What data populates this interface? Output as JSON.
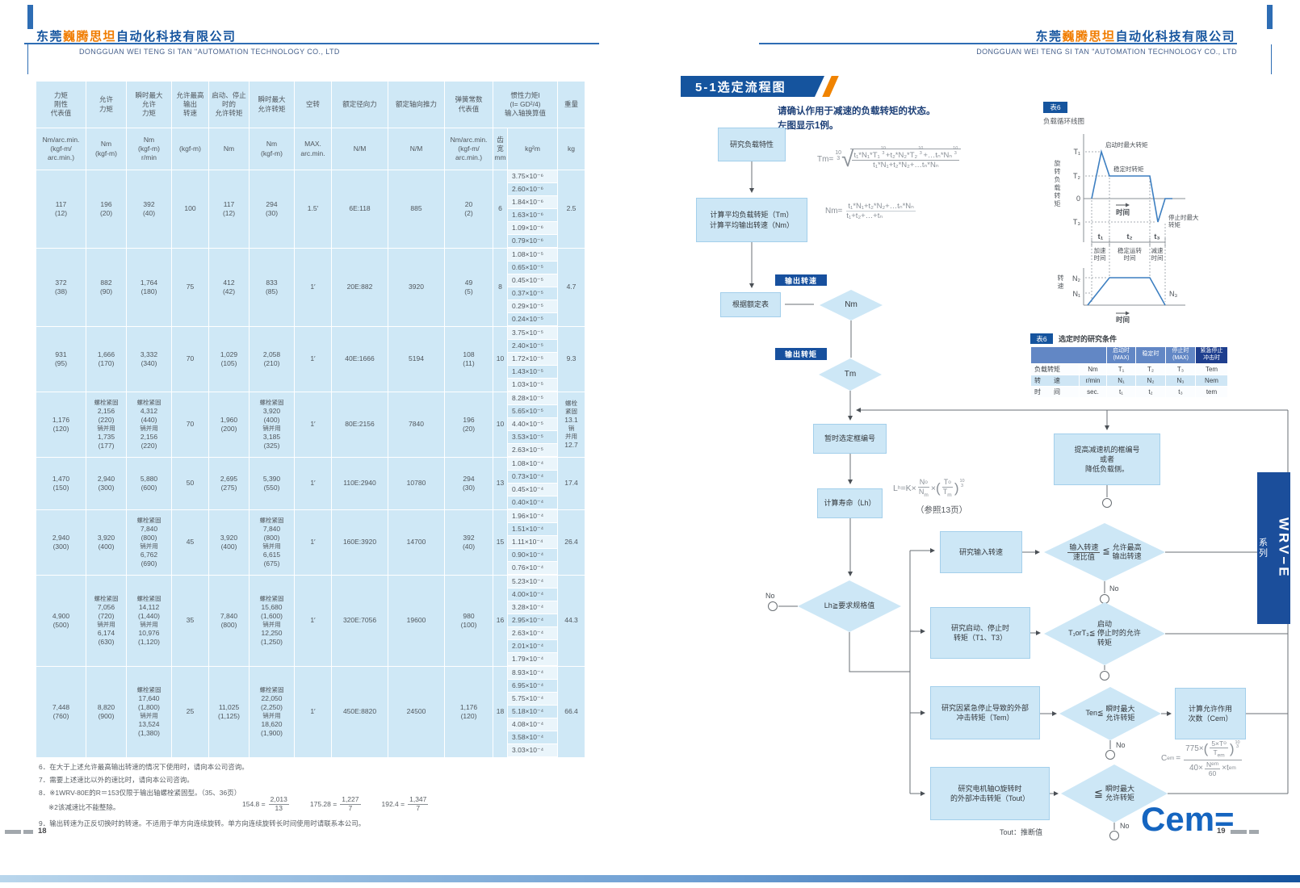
{
  "header_left": {
    "cn_pre": "东莞",
    "cn_brand": "巍腾思坦",
    "cn_post": "自动化科技有限公司",
    "en": "DONGGUAN WEI TENG SI TAN \"AUTOMATION TECHNOLOGY CO., LTD"
  },
  "header_right": {
    "cn_pre": "东莞",
    "cn_brand": "巍腾思坦",
    "cn_post": "自动化科技有限公司",
    "en": "DONGGUAN WEI TENG SI TAN \"AUTOMATION TECHNOLOGY CO., LTD"
  },
  "page_left": {
    "page_num": "18",
    "table": {
      "cols": [
        {
          "t": [
            "力矩",
            "刚性",
            "代表值"
          ],
          "u": [
            "Nm/arc.min.",
            "(kgf-m/",
            "arc.min.)"
          ]
        },
        {
          "t": [
            "允许",
            "力矩"
          ],
          "u": [
            "Nm",
            "(kgf-m)"
          ]
        },
        {
          "t": [
            "瞬时最大",
            "允许",
            "力矩"
          ],
          "u": [
            "Nm",
            "(kgf-m)",
            "r/min"
          ]
        },
        {
          "t": [
            "允许最高",
            "输出",
            "转速"
          ],
          "u": [
            "(kgf-m)"
          ]
        },
        {
          "t": [
            "启动、停止",
            "时的",
            "允许转矩"
          ],
          "u": [
            "Nm"
          ]
        },
        {
          "t": [
            "瞬时最大",
            "允许转矩"
          ],
          "u": [
            "Nm",
            "(kgf-m)"
          ]
        },
        {
          "t": [
            "空转"
          ],
          "u": [
            "MAX.",
            "arc.min."
          ]
        },
        {
          "t": [
            "额定径向力"
          ],
          "u": [
            "N/M"
          ]
        },
        {
          "t": [
            "额定轴向推力"
          ],
          "u": [
            "N/M"
          ]
        },
        {
          "t": [
            "弹簧常数",
            "代表值"
          ],
          "u": [
            "Nm/arc.min.",
            "(kgf-m/",
            "arc.min.)"
          ]
        }
      ],
      "inertia_head": {
        "t": [
          "惯性力矩I",
          "(I= GD²/4)",
          "输入轴换算值"
        ],
        "gear": "齿宽",
        "gear_u": "mm",
        "unit": "kg²m"
      },
      "weight_head": {
        "t": [
          "重量"
        ],
        "u": [
          "kg"
        ]
      },
      "rows": [
        {
          "c": [
            [
              "117",
              "(12)"
            ],
            [
              "196",
              "(20)"
            ],
            [
              "392",
              "(40)"
            ],
            [
              "100"
            ],
            [
              "117",
              "(12)"
            ],
            [
              "294",
              "(30)"
            ],
            [
              "1.5′"
            ],
            [
              "6E:118"
            ],
            [
              "885"
            ],
            [
              "20",
              "(2)"
            ]
          ],
          "w": "6",
          "inertia": [
            "3.75×10⁻⁶",
            "2.60×10⁻⁶",
            "1.84×10⁻⁶",
            "1.63×10⁻⁶",
            "1.09×10⁻⁶",
            "0.79×10⁻⁶"
          ],
          "wt": [
            "2.5"
          ]
        },
        {
          "c": [
            [
              "372",
              "(38)"
            ],
            [
              "882",
              "(90)"
            ],
            [
              "1,764",
              "(180)"
            ],
            [
              "75"
            ],
            [
              "412",
              "(42)"
            ],
            [
              "833",
              "(85)"
            ],
            [
              "1′"
            ],
            [
              "20E:882"
            ],
            [
              "3920"
            ],
            [
              "49",
              "(5)"
            ]
          ],
          "w": "8",
          "inertia": [
            "1.08×10⁻⁵",
            "0.65×10⁻⁵",
            "0.45×10⁻⁵",
            "0.37×10⁻⁵",
            "0.29×10⁻⁵",
            "0.24×10⁻⁵"
          ],
          "wt": [
            "4.7"
          ]
        },
        {
          "c": [
            [
              "931",
              "(95)"
            ],
            [
              "1,666",
              "(170)"
            ],
            [
              "3,332",
              "(340)"
            ],
            [
              "70"
            ],
            [
              "1,029",
              "(105)"
            ],
            [
              "2,058",
              "(210)"
            ],
            [
              "1′"
            ],
            [
              "40E:1666"
            ],
            [
              "5194"
            ],
            [
              "108",
              "(11)"
            ]
          ],
          "w": "10",
          "inertia": [
            "3.75×10⁻⁵",
            "2.40×10⁻⁵",
            "1.72×10⁻⁵",
            "1.43×10⁻⁵",
            "1.03×10⁻⁵"
          ],
          "wt": [
            "9.3"
          ]
        },
        {
          "c": [
            [
              "1,176",
              "(120)"
            ],
            [
              "螺栓紧固",
              "2,156",
              "(220)",
              "销并用",
              "1,735",
              "(177)"
            ],
            [
              "螺栓紧固",
              "4,312",
              "(440)",
              "销并用",
              "2,156",
              "(220)"
            ],
            [
              "70"
            ],
            [
              "1,960",
              "(200)"
            ],
            [
              "螺栓紧固",
              "3,920",
              "(400)",
              "销并用",
              "3,185",
              "(325)"
            ],
            [
              "1′"
            ],
            [
              "80E:2156"
            ],
            [
              "7840"
            ],
            [
              "196",
              "(20)"
            ]
          ],
          "w": "10",
          "inertia": [
            "8.28×10⁻⁵",
            "5.65×10⁻⁵",
            "4.40×10⁻⁵",
            "3.53×10⁻⁵",
            "2.63×10⁻⁵"
          ],
          "wt": [
            "螺栓",
            "紧固",
            "13.1",
            "销",
            "并用",
            "12.7"
          ]
        },
        {
          "c": [
            [
              "1,470",
              "(150)"
            ],
            [
              "2,940",
              "(300)"
            ],
            [
              "5,880",
              "(600)"
            ],
            [
              "50"
            ],
            [
              "2,695",
              "(275)"
            ],
            [
              "5,390",
              "(550)"
            ],
            [
              "1′"
            ],
            [
              "110E:2940"
            ],
            [
              "10780"
            ],
            [
              "294",
              "(30)"
            ]
          ],
          "w": "13",
          "inertia": [
            "1.08×10⁻⁴",
            "0.73×10⁻⁴",
            "0.45×10⁻⁴",
            "0.40×10⁻⁴"
          ],
          "wt": [
            "17.4"
          ]
        },
        {
          "c": [
            [
              "2,940",
              "(300)"
            ],
            [
              "3,920",
              "(400)"
            ],
            [
              "螺栓紧固",
              "7,840",
              "(800)",
              "销并用",
              "6,762",
              "(690)"
            ],
            [
              "45"
            ],
            [
              "3,920",
              "(400)"
            ],
            [
              "螺栓紧固",
              "7,840",
              "(800)",
              "销并用",
              "6,615",
              "(675)"
            ],
            [
              "1′"
            ],
            [
              "160E:3920"
            ],
            [
              "14700"
            ],
            [
              "392",
              "(40)"
            ]
          ],
          "w": "15",
          "inertia": [
            "1.96×10⁻⁴",
            "1.51×10⁻⁴",
            "1.11×10⁻⁴",
            "0.90×10⁻⁴",
            "0.76×10⁻⁴"
          ],
          "wt": [
            "26.4"
          ]
        },
        {
          "c": [
            [
              "4,900",
              "(500)"
            ],
            [
              "螺栓紧固",
              "7,056",
              "(720)",
              "销并用",
              "6,174",
              "(630)"
            ],
            [
              "螺栓紧固",
              "14,112",
              "(1,440)",
              "销并用",
              "10,976",
              "(1,120)"
            ],
            [
              "35"
            ],
            [
              "7,840",
              "(800)"
            ],
            [
              "螺栓紧固",
              "15,680",
              "(1,600)",
              "销并用",
              "12,250",
              "(1,250)"
            ],
            [
              "1′"
            ],
            [
              "320E:7056"
            ],
            [
              "19600"
            ],
            [
              "980",
              "(100)"
            ]
          ],
          "w": "16",
          "inertia": [
            "5.23×10⁻⁴",
            "4.00×10⁻⁴",
            "3.28×10⁻⁴",
            "2.95×10⁻⁴",
            "2.63×10⁻⁴",
            "2.01×10⁻⁴",
            "1.79×10⁻⁴"
          ],
          "wt": [
            "44.3"
          ]
        },
        {
          "c": [
            [
              "7,448",
              "(760)"
            ],
            [
              "8,820",
              "(900)"
            ],
            [
              "螺栓紧固",
              "17,640",
              "(1,800)",
              "销并用",
              "13,524",
              "(1,380)"
            ],
            [
              "25"
            ],
            [
              "11,025",
              "(1,125)"
            ],
            [
              "螺栓紧固",
              "22,050",
              "(2,250)",
              "销并用",
              "18,620",
              "(1,900)"
            ],
            [
              "1′"
            ],
            [
              "450E:8820"
            ],
            [
              "24500"
            ],
            [
              "1,176",
              "(120)"
            ]
          ],
          "w": "18",
          "inertia": [
            "8.93×10⁻⁴",
            "6.95×10⁻⁴",
            "5.75×10⁻⁴",
            "5.18×10⁻⁴",
            "4.08×10⁻⁴",
            "3.58×10⁻⁴",
            "3.03×10⁻⁴"
          ],
          "wt": [
            "66.4"
          ]
        }
      ]
    },
    "notes": [
      "6．在大于上述允许最高输出转速的情况下使用时，请向本公司咨询。",
      "7．需要上述速比以外的速比时，请向本公司咨询。",
      "8．※1WRV-80E的R＝153仅限于输出轴螺栓紧固型。（35、36页）",
      "※2该减速比不能整除。",
      "9．输出转速为正反切换时的转速。不适用于单方向连续旋转。单方向连续旋转长时间使用时请联系本公司。"
    ],
    "fractions": [
      {
        "eq": "154.8 =",
        "n": "2,013",
        "d": "13"
      },
      {
        "eq": "175.28 =",
        "n": "1,227",
        "d": "7"
      },
      {
        "eq": "192.4 =",
        "n": "1,347",
        "d": "7"
      }
    ]
  },
  "page_right": {
    "page_num": "19",
    "banner": "5-1选定流程图",
    "intro1": "请确认作用于减速的负载转矩的状态。",
    "intro2": "左图显示1例。",
    "tab_series": "WRV−E",
    "tab_series2": "系列",
    "flow": {
      "b1": "研究负载特性",
      "b2l1": "计算平均负载转矩（Tm）",
      "b2l2": "计算平均输出转速（Nm）",
      "tag_speed": "输出转速",
      "b3": "根据额定表",
      "d1": "Nm",
      "tag_torque": "输出转矩",
      "d2": "Tm",
      "b4": "暂时选定框编号",
      "b5": "计算寿命（Lh）",
      "d3": "Lh≧要求规格值",
      "no": "No",
      "b6": "研究输入转速",
      "d4n": "输入转速",
      "d4d": "速比值",
      "d4op": "≦",
      "d4r1": "允许最高",
      "d4r2": "输出转速",
      "b7l1": "研究启动、停止时",
      "b7l2": "转矩（T1、T3）",
      "d5l1": "启动",
      "d5l2": "T₁orT₃≦ 停止时的允许",
      "d5l3": "转矩",
      "b8l1": "研究因紧急停止导致的外部",
      "b8l2": "冲击转矩（Tem）",
      "d6l": "Ten≦",
      "d6r1": "瞬时最大",
      "d6r2": "允许转矩",
      "b9l1": "计算允许作用",
      "b9l2": "次数（Cem）",
      "b10l1": "研究电机轴O旋转时",
      "b10l2": "的外部冲击转矩（Tout）",
      "d7op": "≦",
      "d7r1": "瞬时最大",
      "d7r2": "允许转矩",
      "b11l1": "提高减速机的框编号",
      "b11l2": "或者",
      "b11l3": "降低负载侧。",
      "tout_note": "Tout：推断值",
      "cem_big": "Cem="
    },
    "formulas": {
      "exp_n": "10",
      "exp_d": "3",
      "tm_lhs": "Tm=",
      "tm_n1": "t₁*N₁*T₁",
      "tm_n2": "+t₂*N₂*T₂",
      "tm_n3": "+…tₙ*Nₙ",
      "tm_den": "t₁*N₁+t₂*N₂+…tₙ*Nₙ",
      "nm_lhs": "Nm=",
      "nm_num": "t₁*N₁+t₂*N₂+…tₙ*Nₙ",
      "nm_den": "t₁+t₂+…+tₙ",
      "lh_a": "L",
      "lh_as": "h",
      "lh_b": "=K×",
      "lh_n": "N",
      "lh_ns": "o",
      "lh_d": "N",
      "lh_ds": "m",
      "lh_x": "×",
      "lh_t": "T",
      "lh_ts": "o",
      "lh_t2": "T",
      "lh_t2s": "m",
      "lh_ref": "（参照13页）",
      "cem_a": "C",
      "cem_as": "em",
      "cem_eq": "=",
      "cem_k": "775×",
      "cem_n1": "5×T",
      "cem_n1s": "o",
      "cem_d1": "T",
      "cem_d1s": "em",
      "cem_b1": "40×",
      "cem_b2": "N",
      "cem_b2s": "em",
      "cem_b3": "60",
      "cem_b4": "×t",
      "cem_b4s": "em"
    },
    "graph": {
      "badge": "表6",
      "title": "负载循环线图",
      "t1": "T₁",
      "t2": "T₂",
      "zero": "0",
      "t3": "T₃",
      "ylab": "旋转负载转矩",
      "ylab2": "转速",
      "ann_start": "启动时最大转矩",
      "ann_steady": "稳定时转矩",
      "ann_stop1": "停止时最大",
      "ann_stop2": "转矩",
      "time": "时间",
      "time2": "时间",
      "tt1": "t₁",
      "tt2": "t₂",
      "tt3": "t₃",
      "seg1a": "加速",
      "seg1b": "时间",
      "seg2a": "稳定运转",
      "seg2b": "时间",
      "seg3a": "减速",
      "seg3b": "时间",
      "n1": "N₁",
      "n2": "N₂",
      "n3": "N₃"
    },
    "cond": {
      "badge": "表6",
      "title": "选定时的研究条件",
      "h": [
        [
          "启动时",
          "(MAX)"
        ],
        [
          "稳定时"
        ],
        [
          "停止时",
          "(MAX)"
        ],
        [
          "紧急停止",
          "冲击时"
        ]
      ],
      "rows": [
        {
          "label": "负载转矩",
          "unit": "Nm",
          "v": [
            "T₁",
            "T₂",
            "T₃",
            "Tem"
          ]
        },
        {
          "label": "转　　速",
          "unit": "r/min",
          "v": [
            "N₁",
            "N₂",
            "N₃",
            "Nem"
          ]
        },
        {
          "label": "时　　间",
          "unit": "sec.",
          "v": [
            "t₁",
            "t₂",
            "t₃",
            "tem"
          ]
        }
      ]
    }
  }
}
